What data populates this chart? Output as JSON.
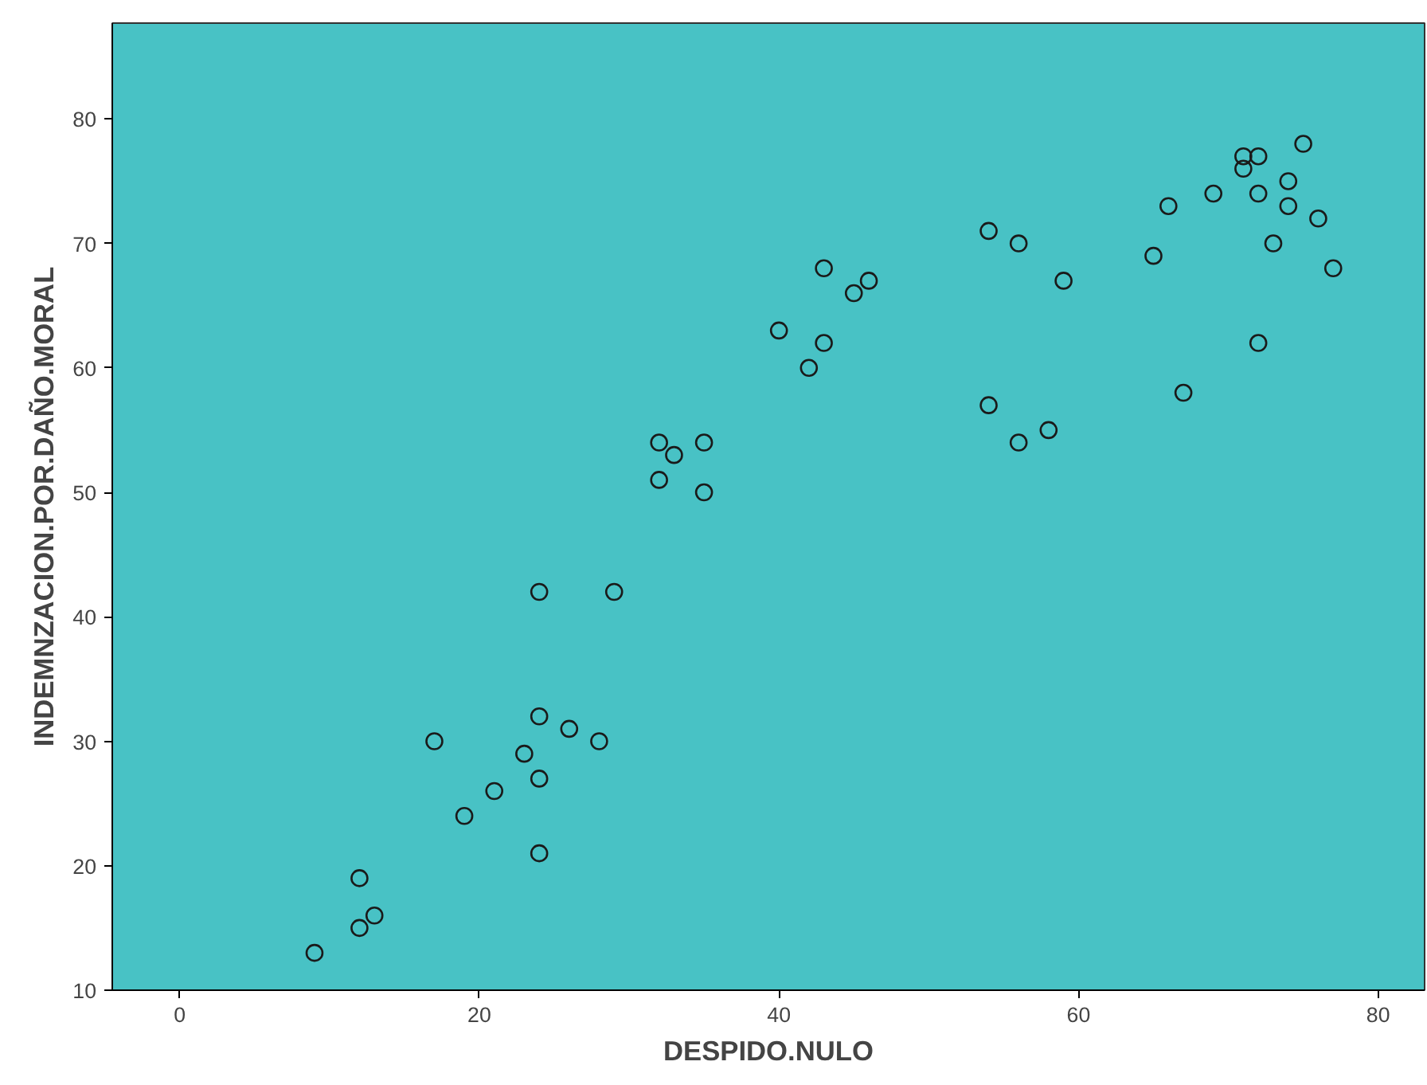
{
  "chart_data": {
    "type": "scatter",
    "xlabel": "DESPIDO.NULO",
    "ylabel": "INDEMNZACION.POR.DAÑO.MORAL",
    "x": [
      9,
      12,
      12,
      13,
      17,
      19,
      21,
      23,
      24,
      24,
      24,
      24,
      26,
      28,
      29,
      32,
      32,
      33,
      35,
      35,
      40,
      42,
      43,
      43,
      45,
      46,
      54,
      54,
      56,
      56,
      58,
      59,
      65,
      66,
      67,
      69,
      71,
      71,
      72,
      72,
      72,
      73,
      74,
      74,
      75,
      76,
      77
    ],
    "series": [
      {
        "color": "#1a1a1a",
        "values": [
          13,
          19,
          15,
          16,
          30,
          24,
          26,
          29,
          42,
          32,
          27,
          21,
          31,
          30,
          42,
          54,
          51,
          53,
          54,
          50,
          63,
          60,
          68,
          62,
          66,
          67,
          71,
          57,
          70,
          54,
          55,
          67,
          69,
          73,
          58,
          74,
          77,
          76,
          77,
          74,
          62,
          70,
          75,
          73,
          78,
          72,
          68
        ]
      }
    ],
    "xlim": [
      -4.5,
      83.1
    ],
    "ylim": [
      10,
      87.7
    ],
    "xticks": [
      0,
      20,
      40,
      60,
      80
    ],
    "yticks": [
      10,
      20,
      30,
      40,
      50,
      60,
      70,
      80
    ],
    "marker": "circle"
  }
}
